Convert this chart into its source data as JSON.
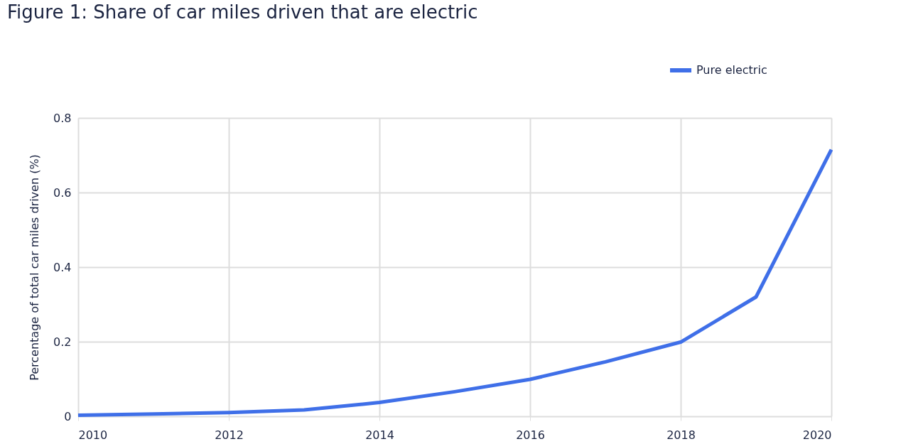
{
  "chart_data": {
    "type": "line",
    "title": "Figure 1: Share of car miles driven that are electric",
    "ylabel": "Percentage of total car miles driven (%)",
    "x": [
      2010,
      2011,
      2012,
      2013,
      2014,
      2015,
      2016,
      2017,
      2018,
      2019,
      2020
    ],
    "series": [
      {
        "name": "Pure electric",
        "color": "#3f6fe8",
        "values": [
          0.003,
          0.006,
          0.01,
          0.017,
          0.037,
          0.066,
          0.099,
          0.146,
          0.199,
          0.32,
          0.715
        ]
      }
    ],
    "xlim": [
      2010,
      2020
    ],
    "xticks": [
      2010,
      2012,
      2014,
      2016,
      2018,
      2020
    ],
    "ylim": [
      0,
      0.8
    ],
    "yticks": [
      0,
      0.2,
      0.4,
      0.6,
      0.8
    ],
    "grid": true,
    "legend": "top right",
    "marker": "none",
    "line_style": "solid"
  }
}
